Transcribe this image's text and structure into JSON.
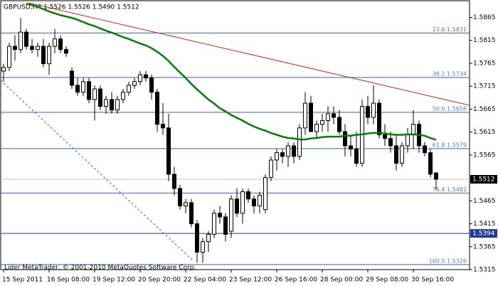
{
  "chart_data": {
    "type": "candlestick",
    "title": "GBPUSD,H4 1.5526 1.5526 1.5490 1.5512",
    "footer": "Lider MetaTrader, © 2001-2010 MetaQuotes Software Corp.",
    "categories": [
      "15 Sep 2011",
      null,
      null,
      null,
      null,
      null,
      null,
      null,
      "16 Sep 08:00",
      null,
      null,
      null,
      null,
      null,
      null,
      null,
      "19 Sep 12:00",
      null,
      null,
      null,
      null,
      null,
      null,
      null,
      "20 Sep 20:00",
      null,
      null,
      null,
      null,
      null,
      null,
      null,
      "22 Sep 04:00",
      null,
      null,
      null,
      null,
      null,
      null,
      null,
      "23 Sep 12:00",
      null,
      null,
      null,
      null,
      null,
      null,
      null,
      "26 Sep 16:00",
      null,
      null,
      null,
      null,
      null,
      null,
      null,
      "28 Sep 00:00",
      null,
      null,
      null,
      null,
      null,
      null,
      null,
      "29 Sep 08:00",
      null,
      null,
      null,
      null,
      null,
      null,
      null,
      "30 Sep 16:00",
      null,
      null,
      null,
      null
    ],
    "open": [
      1.5748,
      1.5756,
      1.5802,
      1.5795,
      1.5833,
      1.5802,
      1.5795,
      1.5802,
      1.5764,
      1.5802,
      1.5818,
      1.5795,
      1.5748,
      1.5717,
      1.5702,
      1.5725,
      1.5686,
      1.5709,
      1.5671,
      1.5686,
      1.5663,
      1.5686,
      1.5702,
      1.5717,
      1.5725,
      1.574,
      1.5733,
      1.5702,
      1.5632,
      1.5624,
      1.5523,
      1.5492,
      1.5454,
      1.5461,
      1.5415,
      1.5353,
      1.5376,
      1.5392,
      1.5438,
      1.543,
      1.5399,
      1.5469,
      1.5438,
      1.5485,
      1.5469,
      1.5454,
      1.5446,
      1.5516,
      1.5554,
      1.557,
      1.5562,
      1.5585,
      1.5562,
      1.5624,
      1.5678,
      1.5616,
      1.5632,
      1.564,
      1.5655,
      1.5647,
      1.5616,
      1.5585,
      1.5578,
      1.5547,
      1.5671,
      1.5647,
      1.5678,
      1.5609,
      1.5601,
      1.5585,
      1.5547,
      1.5585,
      1.5609,
      1.5632,
      1.5585,
      1.557,
      1.5526
    ],
    "high": [
      1.5764,
      1.581,
      1.5826,
      1.5864,
      1.584,
      1.5818,
      1.581,
      1.5818,
      1.581,
      1.584,
      1.5826,
      1.5802,
      1.5756,
      1.5733,
      1.5733,
      1.5733,
      1.5717,
      1.5717,
      1.5694,
      1.5702,
      1.5694,
      1.5709,
      1.5725,
      1.5733,
      1.5748,
      1.5748,
      1.574,
      1.5709,
      1.5678,
      1.5655,
      1.5539,
      1.55,
      1.5469,
      1.5469,
      1.5423,
      1.5384,
      1.5399,
      1.5446,
      1.5454,
      1.5438,
      1.5477,
      1.5492,
      1.5492,
      1.5492,
      1.5477,
      1.5485,
      1.5523,
      1.5562,
      1.5578,
      1.5578,
      1.5593,
      1.5593,
      1.5632,
      1.5702,
      1.5694,
      1.564,
      1.5655,
      1.5671,
      1.5671,
      1.5663,
      1.5632,
      1.5609,
      1.5616,
      1.5686,
      1.5694,
      1.5717,
      1.5686,
      1.5632,
      1.5616,
      1.5609,
      1.5593,
      1.5624,
      1.5663,
      1.564,
      1.5593,
      1.5578,
      1.5526
    ],
    "low": [
      1.5725,
      1.5748,
      1.5771,
      1.5787,
      1.5795,
      1.5787,
      1.5779,
      1.5756,
      1.574,
      1.5787,
      1.5787,
      1.5779,
      1.5709,
      1.5694,
      1.5694,
      1.5678,
      1.564,
      1.5663,
      1.5655,
      1.5655,
      1.5655,
      1.5678,
      1.5694,
      1.5709,
      1.5717,
      1.5725,
      1.5686,
      1.5616,
      1.5609,
      1.5508,
      1.5477,
      1.5446,
      1.5438,
      1.5407,
      1.533,
      1.533,
      1.5353,
      1.5384,
      1.5415,
      1.5376,
      1.5384,
      1.543,
      1.5415,
      1.5461,
      1.5438,
      1.5438,
      1.5438,
      1.5508,
      1.5531,
      1.5547,
      1.5539,
      1.5547,
      1.5554,
      1.5609,
      1.5616,
      1.5601,
      1.5616,
      1.5616,
      1.5632,
      1.5609,
      1.5562,
      1.5562,
      1.5539,
      1.5539,
      1.5632,
      1.5632,
      1.5601,
      1.5585,
      1.557,
      1.5531,
      1.5539,
      1.557,
      1.5578,
      1.557,
      1.5562,
      1.5516,
      1.549
    ],
    "close": [
      1.5756,
      1.5802,
      1.5795,
      1.5833,
      1.5802,
      1.5795,
      1.5802,
      1.5764,
      1.5802,
      1.5818,
      1.5795,
      1.5787,
      1.5717,
      1.5702,
      1.5725,
      1.5686,
      1.5709,
      1.5671,
      1.5686,
      1.5663,
      1.5686,
      1.5702,
      1.5717,
      1.5725,
      1.574,
      1.5733,
      1.5702,
      1.5632,
      1.5624,
      1.5523,
      1.5492,
      1.5454,
      1.5461,
      1.5415,
      1.5353,
      1.5376,
      1.5392,
      1.5438,
      1.543,
      1.5392,
      1.5469,
      1.5438,
      1.5485,
      1.5469,
      1.5454,
      1.5477,
      1.5516,
      1.5554,
      1.557,
      1.5562,
      1.5585,
      1.5562,
      1.5624,
      1.5678,
      1.5616,
      1.5632,
      1.564,
      1.5655,
      1.5647,
      1.5616,
      1.5585,
      1.5578,
      1.5547,
      1.5671,
      1.5647,
      1.5678,
      1.5609,
      1.5601,
      1.5585,
      1.5547,
      1.5585,
      1.5609,
      1.5632,
      1.5585,
      1.557,
      1.5523,
      1.5512
    ],
    "ma": {
      "color": "#0a7a0a",
      "values": [
        null,
        null,
        null,
        null,
        1.5895,
        1.5892,
        1.5888,
        1.5883,
        1.5878,
        1.5874,
        1.587,
        1.5867,
        1.5864,
        1.586,
        1.5855,
        1.585,
        1.5846,
        1.5841,
        1.5836,
        1.5832,
        1.5827,
        1.5822,
        1.5818,
        1.5813,
        1.5808,
        1.5804,
        1.5798,
        1.579,
        1.5781,
        1.577,
        1.5757,
        1.5745,
        1.5733,
        1.572,
        1.5708,
        1.5697,
        1.5686,
        1.5677,
        1.5667,
        1.566,
        1.5652,
        1.5646,
        1.564,
        1.5633,
        1.5627,
        1.5622,
        1.5618,
        1.5613,
        1.5609,
        1.5605,
        1.5602,
        1.5601,
        1.5599,
        1.5599,
        1.5601,
        1.5602,
        1.5604,
        1.5605,
        1.5605,
        1.5605,
        1.5607,
        1.5607,
        1.5609,
        1.561,
        1.5612,
        1.5613,
        1.5613,
        1.5612,
        1.561,
        1.5609,
        1.5609,
        1.561,
        1.561,
        1.5609,
        1.5607,
        1.5602,
        1.5598
      ]
    },
    "fib_levels": [
      {
        "value": 1.5831,
        "label": "23.6 1.5831"
      },
      {
        "value": 1.5734,
        "label": "38.2 1.5734"
      },
      {
        "value": 1.5658,
        "label": "50.0 1.5658"
      },
      {
        "value": 1.5579,
        "label": "61.8 1.5579"
      },
      {
        "value": 1.5482,
        "label": "76.4 1.5482"
      },
      {
        "value": 1.5326,
        "label": "100.0 1.5326"
      }
    ],
    "hline": 1.5394,
    "ylim": [
      1.5315,
      1.5903
    ],
    "yticks": [
      1.5865,
      1.5815,
      1.5765,
      1.5715,
      1.5665,
      1.5615,
      1.5565,
      1.5465,
      1.5415,
      1.5365,
      1.5315
    ]
  }
}
